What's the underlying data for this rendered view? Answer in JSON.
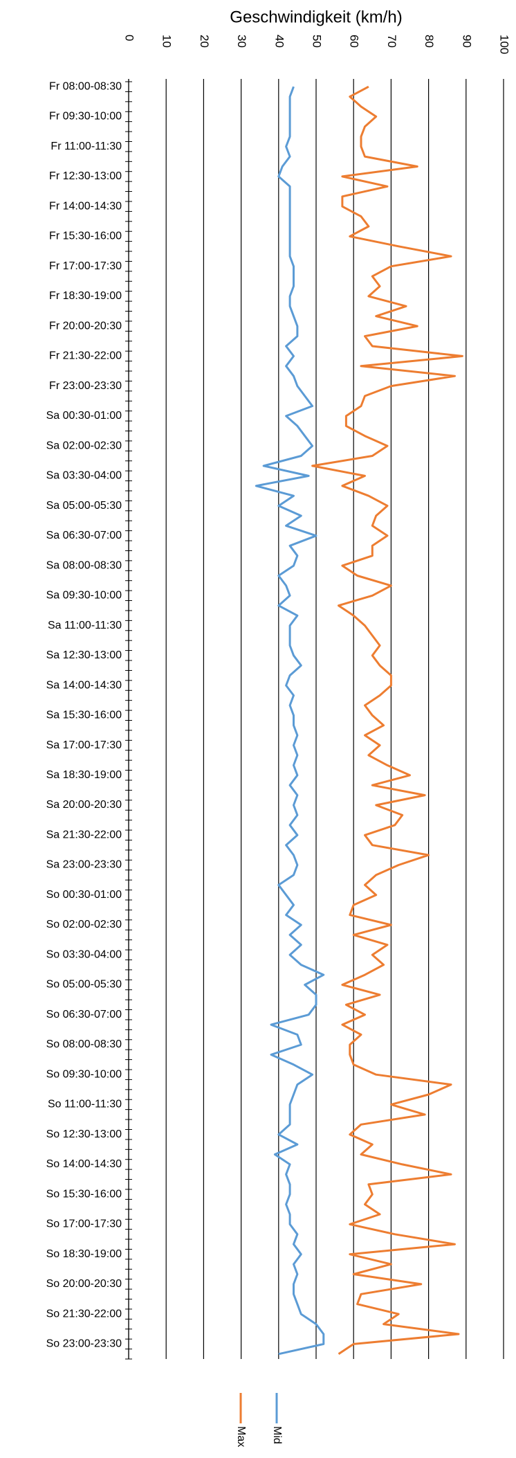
{
  "chart_data": {
    "type": "line",
    "title": "Geschwindigkeit (km/h)",
    "categories": [
      "Fr 08:00-08:30",
      null,
      null,
      "Fr 09:30-10:00",
      null,
      null,
      "Fr 11:00-11:30",
      null,
      null,
      "Fr 12:30-13:00",
      null,
      null,
      "Fr 14:00-14:30",
      null,
      null,
      "Fr 15:30-16:00",
      null,
      null,
      "Fr 17:00-17:30",
      null,
      null,
      "Fr 18:30-19:00",
      null,
      null,
      "Fr 20:00-20:30",
      null,
      null,
      "Fr 21:30-22:00",
      null,
      null,
      "Fr 23:00-23:30",
      null,
      null,
      "Sa 00:30-01:00",
      null,
      null,
      "Sa 02:00-02:30",
      null,
      null,
      "Sa 03:30-04:00",
      null,
      null,
      "Sa 05:00-05:30",
      null,
      null,
      "Sa 06:30-07:00",
      null,
      null,
      "Sa 08:00-08:30",
      null,
      null,
      "Sa 09:30-10:00",
      null,
      null,
      "Sa 11:00-11:30",
      null,
      null,
      "Sa 12:30-13:00",
      null,
      null,
      "Sa 14:00-14:30",
      null,
      null,
      "Sa 15:30-16:00",
      null,
      null,
      "Sa 17:00-17:30",
      null,
      null,
      "Sa 18:30-19:00",
      null,
      null,
      "Sa 20:00-20:30",
      null,
      null,
      "Sa 21:30-22:00",
      null,
      null,
      "Sa 23:00-23:30",
      null,
      null,
      "So 00:30-01:00",
      null,
      null,
      "So 02:00-02:30",
      null,
      null,
      "So 03:30-04:00",
      null,
      null,
      "So 05:00-05:30",
      null,
      null,
      "So 06:30-07:00",
      null,
      null,
      "So 08:00-08:30",
      null,
      null,
      "So 09:30-10:00",
      null,
      null,
      "So 11:00-11:30",
      null,
      null,
      "So 12:30-13:00",
      null,
      null,
      "So 14:00-14:30",
      null,
      null,
      "So 15:30-16:00",
      null,
      null,
      "So 17:00-17:30",
      null,
      null,
      "So 18:30-19:00",
      null,
      null,
      "So 20:00-20:30",
      null,
      null,
      "So 21:30-22:00",
      null,
      null,
      "So 23:00-23:30",
      null
    ],
    "series": [
      {
        "name": "Mid",
        "color": "#5b9bd5",
        "values": [
          44,
          43,
          43,
          43,
          43,
          43,
          42,
          43,
          41,
          40,
          43,
          43,
          43,
          43,
          43,
          43,
          43,
          43,
          44,
          44,
          44,
          43,
          43,
          44,
          45,
          45,
          42,
          44,
          42,
          44,
          45,
          47,
          49,
          42,
          45,
          47,
          49,
          46,
          36,
          48,
          34,
          44,
          40,
          46,
          42,
          50,
          43,
          45,
          44,
          40,
          42,
          43,
          40,
          45,
          43,
          43,
          43,
          44,
          46,
          43,
          42,
          44,
          43,
          44,
          44,
          45,
          44,
          45,
          44,
          45,
          43,
          45,
          44,
          45,
          43,
          45,
          42,
          44,
          45,
          44,
          40,
          42,
          44,
          42,
          46,
          43,
          46,
          43,
          46,
          52,
          47,
          50,
          50,
          48,
          38,
          45,
          46,
          38,
          44,
          49,
          45,
          44,
          43,
          43,
          43,
          40,
          45,
          39,
          43,
          42,
          43,
          43,
          42,
          43,
          43,
          45,
          44,
          46,
          44,
          45,
          44,
          44,
          45,
          46,
          50,
          52,
          52,
          40
        ]
      },
      {
        "name": "Max",
        "color": "#ed7d31",
        "values": [
          64,
          59,
          62,
          66,
          63,
          62,
          62,
          63,
          77,
          57,
          69,
          57,
          57,
          62,
          64,
          59,
          72,
          86,
          70,
          65,
          67,
          64,
          74,
          66,
          77,
          63,
          65,
          89,
          62,
          87,
          70,
          63,
          62,
          58,
          58,
          63,
          69,
          65,
          49,
          63,
          57,
          64,
          69,
          66,
          65,
          69,
          65,
          65,
          57,
          61,
          70,
          65,
          56,
          60,
          63,
          65,
          67,
          65,
          67,
          70,
          70,
          67,
          63,
          65,
          68,
          63,
          67,
          64,
          69,
          75,
          65,
          79,
          66,
          73,
          71,
          63,
          65,
          80,
          72,
          66,
          63,
          66,
          60,
          59,
          70,
          60,
          69,
          65,
          68,
          63,
          57,
          67,
          58,
          63,
          57,
          62,
          59,
          59,
          60,
          66,
          86,
          80,
          70,
          79,
          62,
          59,
          65,
          62,
          73,
          86,
          64,
          65,
          63,
          67,
          59,
          71,
          87,
          59,
          70,
          60,
          78,
          62,
          61,
          72,
          68,
          88,
          60,
          56
        ]
      }
    ],
    "ylim": [
      0,
      100
    ],
    "yticks": [
      0,
      10,
      20,
      30,
      40,
      50,
      60,
      70,
      80,
      90,
      100
    ],
    "grid": true
  }
}
